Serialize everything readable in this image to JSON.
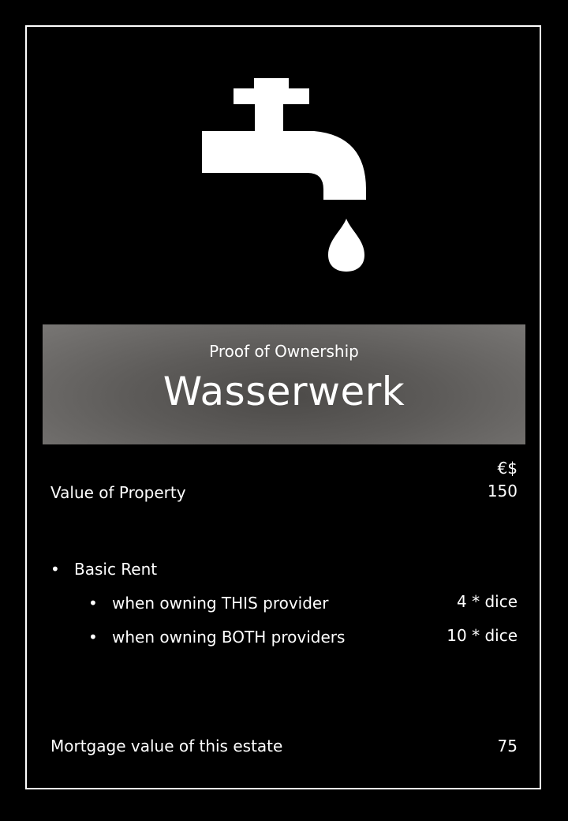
{
  "card": {
    "icon": "water-tap-icon",
    "subtitle": "Proof of Ownership",
    "title": "Wasserwerk",
    "currency": "€$",
    "value_label": "Value of Property",
    "value_amount": "150",
    "rent_header": "Basic Rent",
    "rent_rows": [
      {
        "label": "when owning THIS provider",
        "amount": "4 * dice"
      },
      {
        "label": "when owning BOTH providers",
        "amount": "10 * dice"
      }
    ],
    "mortgage_label": "Mortgage value of this estate",
    "mortgage_amount": "75",
    "colors": {
      "background": "#000000",
      "text": "#ffffff",
      "band_center": "#4c4a48",
      "band_edge": "#787674"
    }
  }
}
